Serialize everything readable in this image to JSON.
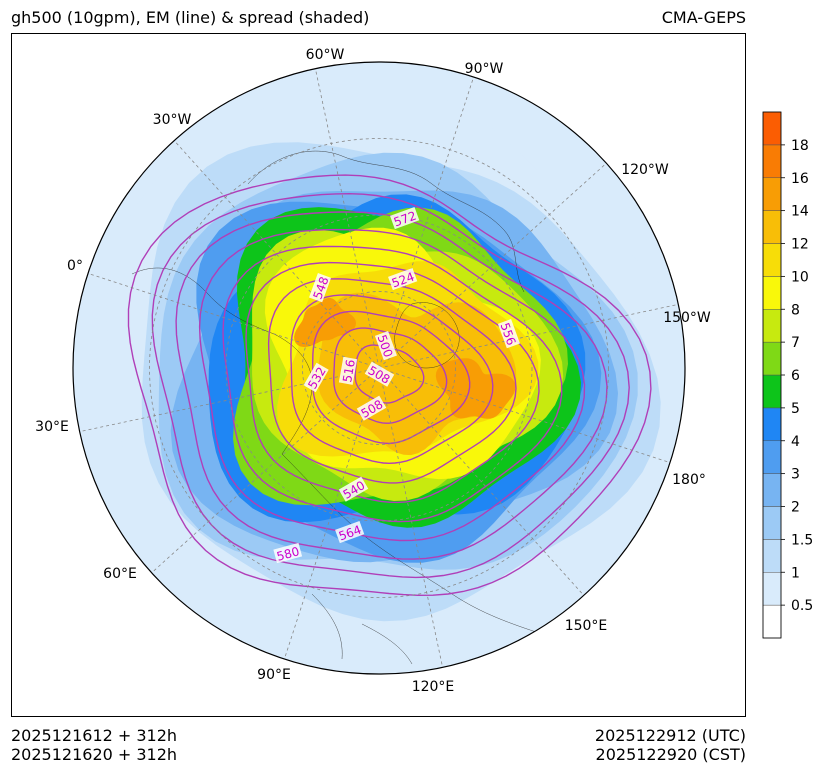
{
  "header": {
    "title_left": "gh500 (10gpm), EM (line) & spread (shaded)",
    "title_right": "CMA-GEPS"
  },
  "footer": {
    "init_utc": "2025121612 + 312h",
    "init_cst": "2025121620 + 312h",
    "valid_utc": "2025122912 (UTC)",
    "valid_cst": "2025122920 (CST)"
  },
  "chart_data": {
    "type": "contour",
    "projection": "north-polar-stereographic",
    "variable": "500 hPa geopotential height (10gpm)",
    "lines": "ensemble mean",
    "shading": "ensemble spread",
    "longitude_labels": [
      "60°W",
      "90°W",
      "30°W",
      "120°W",
      "0°",
      "150°W",
      "30°E",
      "180°",
      "60°E",
      "150°E",
      "90°E",
      "120°E"
    ],
    "contour_labels": [
      "572",
      "524",
      "548",
      "556",
      "500",
      "516",
      "508",
      "532",
      "508",
      "540",
      "564",
      "580"
    ],
    "contour_levels": [
      500,
      508,
      516,
      524,
      532,
      540,
      548,
      556,
      564,
      572,
      580
    ],
    "colorbar": {
      "tick_labels": [
        "0.5",
        "1",
        "1.5",
        "2",
        "3",
        "4",
        "5",
        "6",
        "7",
        "8",
        "10",
        "12",
        "14",
        "16",
        "18"
      ],
      "colors": [
        "#ffffff",
        "#d9ebfb",
        "#bddcf8",
        "#9ccaf5",
        "#77b4f2",
        "#4f9df0",
        "#1f86f4",
        "#0dc41a",
        "#7fd916",
        "#c7ea0f",
        "#f9f80a",
        "#f7dd08",
        "#f8be07",
        "#f89d05",
        "#f97c04",
        "#fb5d02"
      ]
    },
    "line_color": "#b03fb8",
    "label_color": "#cc00cc"
  }
}
